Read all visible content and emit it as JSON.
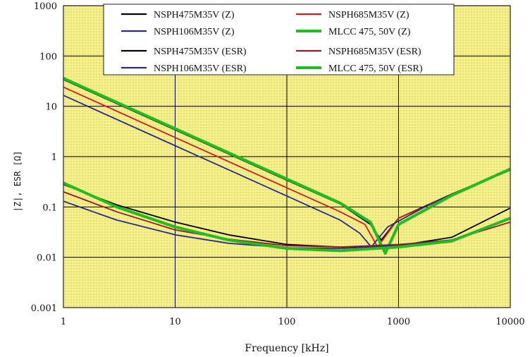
{
  "chart_data": {
    "type": "line",
    "title": "",
    "xlabel": "Frequency [kHz]",
    "ylabel": "|Z|, ESR [Ω]",
    "x_scale": "log",
    "y_scale": "log",
    "xlim": [
      1,
      10000
    ],
    "ylim": [
      0.001,
      1000
    ],
    "x_ticks": [
      "1",
      "10",
      "100",
      "1000",
      "10000"
    ],
    "y_ticks": [
      "0.001",
      "0.01",
      "0.1",
      "1",
      "10",
      "100",
      "1000"
    ],
    "grid": true,
    "legend_position": "top",
    "colors": {
      "plot_background": "#f6f08c",
      "grid": "#000000",
      "dot_pattern": "#b9b24a"
    },
    "series": [
      {
        "name": "NSPH475M35V (Z)",
        "color": "#000000",
        "x": [
          1,
          10,
          100,
          300,
          560,
          700,
          1000,
          3000,
          10000
        ],
        "y": [
          34,
          3.4,
          0.34,
          0.115,
          0.045,
          0.022,
          0.06,
          0.18,
          0.56
        ]
      },
      {
        "name": "NSPH685M35V (Z)",
        "color": "#cc1f1f",
        "x": [
          1,
          10,
          100,
          300,
          500,
          650,
          1000,
          3000,
          10000
        ],
        "y": [
          24,
          2.4,
          0.24,
          0.08,
          0.045,
          0.016,
          0.06,
          0.17,
          0.55
        ]
      },
      {
        "name": "NSPH106M35V (Z)",
        "color": "#2b2b8c",
        "x": [
          1,
          10,
          100,
          300,
          450,
          570,
          800,
          2000,
          10000
        ],
        "y": [
          16.5,
          1.65,
          0.165,
          0.055,
          0.03,
          0.016,
          0.04,
          0.12,
          0.54
        ]
      },
      {
        "name": "MLCC 475, 50V (Z)",
        "color": "#22bb22",
        "x": [
          1,
          10,
          100,
          300,
          560,
          760,
          1000,
          3000,
          10000
        ],
        "y": [
          36,
          3.6,
          0.36,
          0.12,
          0.05,
          0.012,
          0.045,
          0.17,
          0.57
        ]
      },
      {
        "name": "NSPH475M35V (ESR)",
        "color": "#000000",
        "x": [
          1,
          3,
          10,
          30,
          100,
          300,
          1000,
          3000,
          10000
        ],
        "y": [
          0.28,
          0.11,
          0.05,
          0.028,
          0.018,
          0.016,
          0.017,
          0.025,
          0.095
        ]
      },
      {
        "name": "NSPH685M35V (ESR)",
        "color": "#9a1a2a",
        "x": [
          1,
          3,
          10,
          30,
          100,
          300,
          1000,
          3000,
          10000
        ],
        "y": [
          0.2,
          0.08,
          0.035,
          0.023,
          0.017,
          0.016,
          0.018,
          0.022,
          0.05
        ]
      },
      {
        "name": "NSPH106M35V (ESR)",
        "color": "#2b2b8c",
        "x": [
          1,
          3,
          10,
          30,
          100,
          300,
          1000,
          3000,
          10000
        ],
        "y": [
          0.13,
          0.055,
          0.028,
          0.019,
          0.0155,
          0.015,
          0.017,
          0.022,
          0.06
        ]
      },
      {
        "name": "MLCC 475, 50V (ESR)",
        "color": "#22bb22",
        "x": [
          1,
          3,
          10,
          30,
          100,
          300,
          1000,
          3000,
          10000
        ],
        "y": [
          0.3,
          0.1,
          0.04,
          0.022,
          0.015,
          0.0135,
          0.016,
          0.021,
          0.06
        ]
      }
    ]
  }
}
